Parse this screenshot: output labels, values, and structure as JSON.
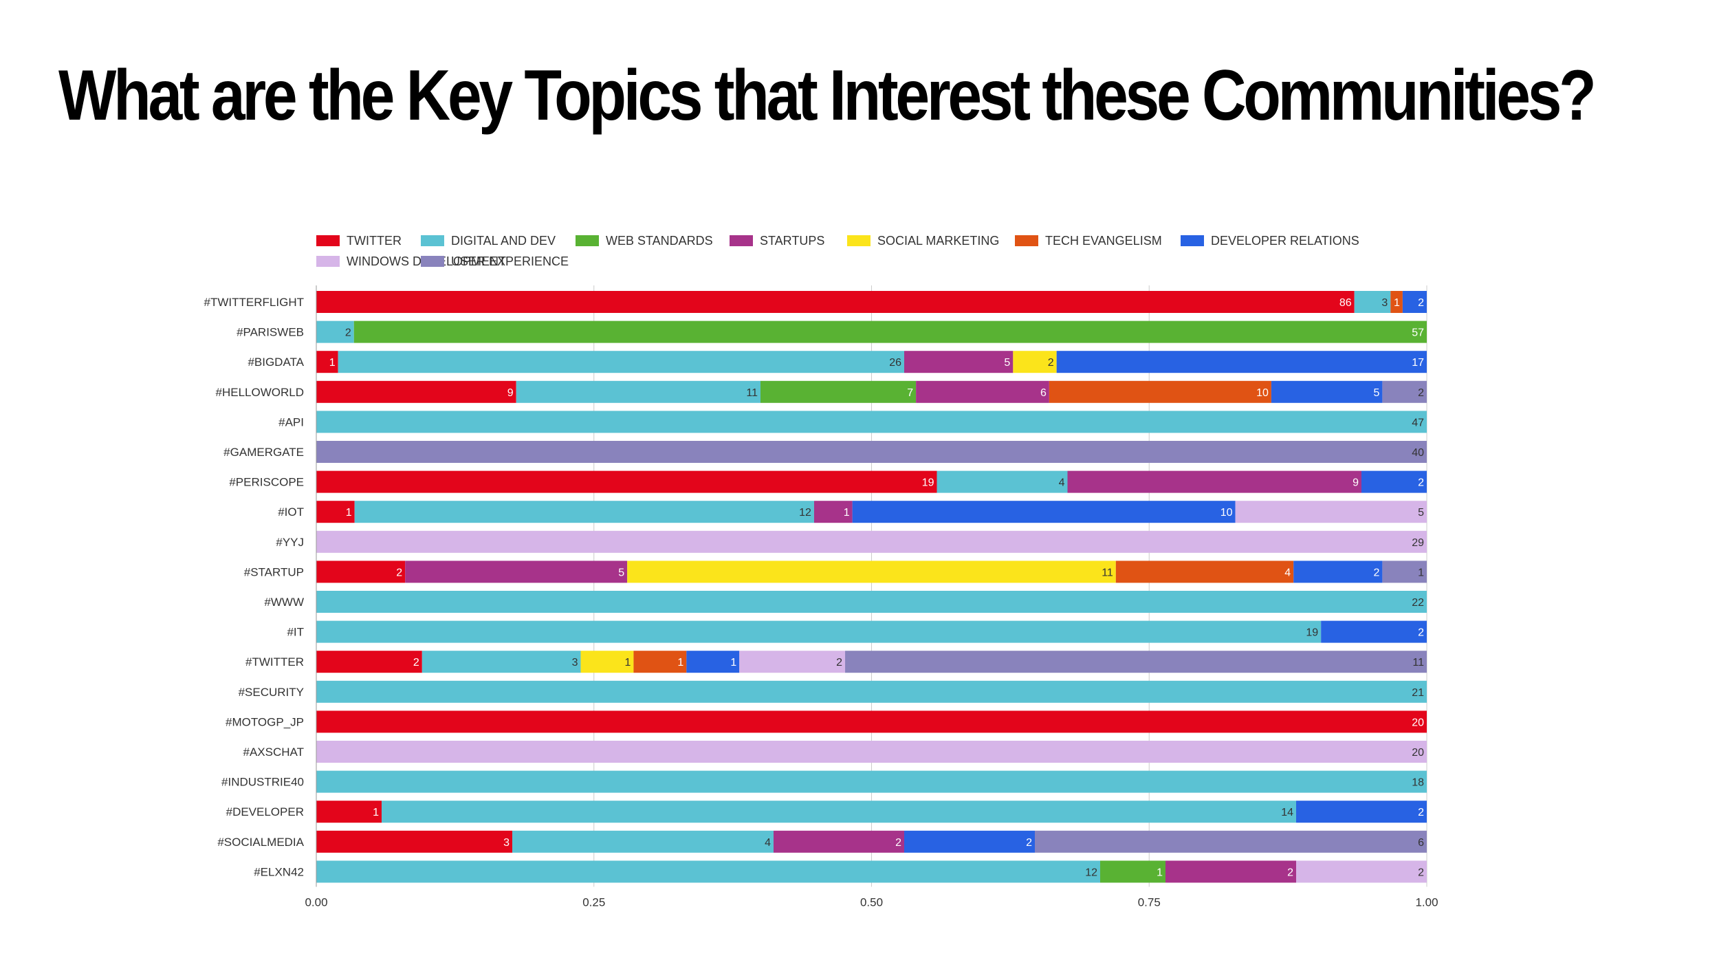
{
  "title": "What are the Key Topics that Interest these Communities?",
  "chart_data": {
    "type": "bar",
    "orientation": "horizontal",
    "stacked": "normalized",
    "xlim": [
      0,
      1
    ],
    "xticks": [
      "0.00",
      "0.25",
      "0.50",
      "0.75",
      "1.00"
    ],
    "legend_position": "top",
    "grid": true,
    "categories": [
      "#TWITTERFLIGHT",
      "#PARISWEB",
      "#BIGDATA",
      "#HELLOWORLD",
      "#API",
      "#GAMERGATE",
      "#PERISCOPE",
      "#IOT",
      "#YYJ",
      "#STARTUP",
      "#WWW",
      "#IT",
      "#TWITTER",
      "#SECURITY",
      "#MOTOGP_JP",
      "#AXSCHAT",
      "#INDUSTRIE40",
      "#DEVELOPER",
      "#SOCIALMEDIA",
      "#ELXN42"
    ],
    "series": [
      {
        "name": "TWITTER",
        "color": "#e3051b",
        "label_color": "#ffffff",
        "values": [
          86,
          0,
          1,
          9,
          0,
          0,
          19,
          1,
          0,
          2,
          0,
          0,
          2,
          0,
          20,
          0,
          0,
          1,
          3,
          0
        ]
      },
      {
        "name": "DIGITAL AND DEV",
        "color": "#5bc2d3",
        "label_color": "#333333",
        "values": [
          3,
          2,
          26,
          11,
          47,
          0,
          4,
          12,
          0,
          0,
          22,
          19,
          3,
          21,
          0,
          0,
          18,
          14,
          4,
          12
        ]
      },
      {
        "name": "WEB STANDARDS",
        "color": "#59b233",
        "label_color": "#ffffff",
        "values": [
          0,
          57,
          0,
          7,
          0,
          0,
          0,
          0,
          0,
          0,
          0,
          0,
          0,
          0,
          0,
          0,
          0,
          0,
          0,
          1
        ]
      },
      {
        "name": "STARTUPS",
        "color": "#a7338a",
        "label_color": "#ffffff",
        "values": [
          0,
          0,
          5,
          6,
          0,
          0,
          9,
          1,
          0,
          5,
          0,
          0,
          0,
          0,
          0,
          0,
          0,
          0,
          2,
          2
        ]
      },
      {
        "name": "SOCIAL MARKETING",
        "color": "#fbe41b",
        "label_color": "#333333",
        "values": [
          0,
          0,
          2,
          0,
          0,
          0,
          0,
          0,
          0,
          11,
          0,
          0,
          1,
          0,
          0,
          0,
          0,
          0,
          0,
          0
        ]
      },
      {
        "name": "TECH EVANGELISM",
        "color": "#e05314",
        "label_color": "#ffffff",
        "values": [
          1,
          0,
          0,
          10,
          0,
          0,
          0,
          0,
          0,
          4,
          0,
          0,
          1,
          0,
          0,
          0,
          0,
          0,
          0,
          0
        ]
      },
      {
        "name": "DEVELOPER RELATIONS",
        "color": "#2862e3",
        "label_color": "#ffffff",
        "values": [
          2,
          0,
          17,
          5,
          0,
          0,
          2,
          10,
          0,
          2,
          0,
          2,
          1,
          0,
          0,
          0,
          0,
          2,
          2,
          0
        ]
      },
      {
        "name": "WINDOWS DEVELOPMENT",
        "color": "#d6b5e8",
        "label_color": "#333333",
        "values": [
          0,
          0,
          0,
          0,
          0,
          0,
          0,
          5,
          29,
          0,
          0,
          0,
          2,
          0,
          0,
          20,
          0,
          0,
          0,
          2
        ]
      },
      {
        "name": "USER EXPERIENCE",
        "color": "#8983bc",
        "label_color": "#333333",
        "values": [
          0,
          0,
          0,
          2,
          0,
          40,
          0,
          0,
          0,
          1,
          0,
          0,
          11,
          0,
          0,
          0,
          0,
          0,
          6,
          0
        ]
      }
    ]
  }
}
